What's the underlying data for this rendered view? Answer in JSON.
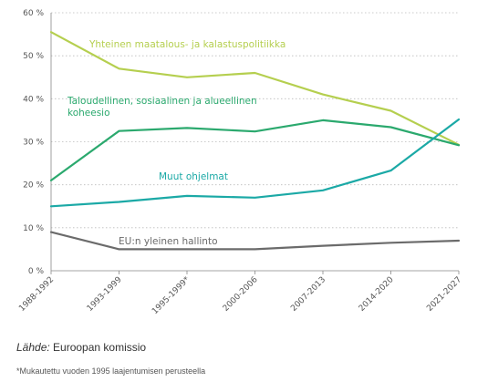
{
  "chart_data": {
    "type": "line",
    "categories": [
      "1988-1992",
      "1993-1999",
      "1995-1999*",
      "2000-2006",
      "2007-2013",
      "2014-2020",
      "2021-2027"
    ],
    "ylim": [
      0,
      60
    ],
    "yticks": [
      0,
      10,
      20,
      30,
      40,
      50,
      60
    ],
    "ytick_labels": [
      "0 %",
      "10 %",
      "20 %",
      "30 %",
      "40 %",
      "50 %",
      "60 %"
    ],
    "grid": "horizontal-dotted",
    "series": [
      {
        "name": "Yhteinen maatalous- ja kalastuspolitiikka",
        "color": "#b5cf4f",
        "values": [
          55.5,
          47.0,
          45.0,
          46.0,
          41.0,
          37.2,
          29.3
        ]
      },
      {
        "name": "Taloudellinen, sosiaalinen ja alueellinen koheesio",
        "color": "#2ba96e",
        "name_lines": [
          "Taloudellinen, sosiaalinen ja alueellinen",
          "koheesio"
        ],
        "values": [
          21.0,
          32.5,
          33.2,
          32.4,
          35.0,
          33.4,
          29.2
        ]
      },
      {
        "name": "Muut ohjelmat",
        "color": "#1ba9a6",
        "values": [
          15.0,
          16.0,
          17.4,
          17.0,
          18.7,
          23.3,
          35.2
        ]
      },
      {
        "name": "EU:n yleinen hallinto",
        "color": "#6b6b6b",
        "values": [
          9.0,
          5.0,
          5.0,
          5.0,
          5.8,
          6.5,
          7.0
        ]
      }
    ]
  },
  "source": {
    "prefix": "Lähde:",
    "text": " Euroopan komissio"
  },
  "footnote": "*Mukautettu vuoden 1995 laajentumisen perusteella"
}
